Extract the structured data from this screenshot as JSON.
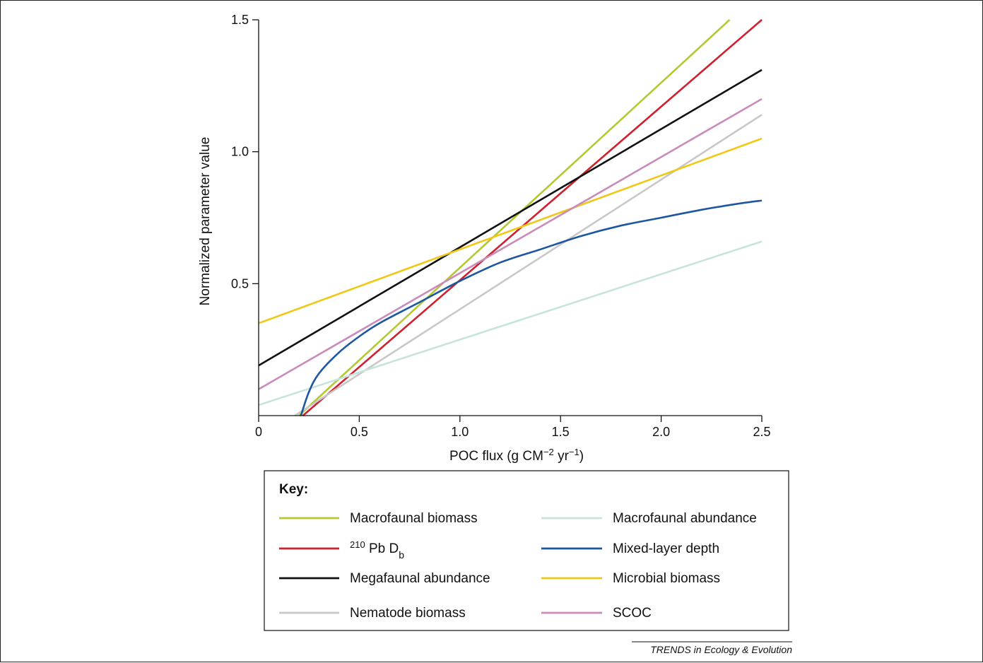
{
  "chart_data": {
    "type": "line",
    "xlabel_parts": {
      "text": "POC flux (g CM",
      "sup1": "−2",
      "mid": " yr",
      "sup2": "−1",
      "end": ")"
    },
    "ylabel": "Normalized parameter value",
    "xlim": [
      0,
      2.5
    ],
    "ylim": [
      0,
      1.5
    ],
    "xticks": [
      0,
      0.5,
      1.0,
      1.5,
      2.0,
      2.5
    ],
    "xtick_labels": [
      "0",
      "0.5",
      "1.0",
      "1.5",
      "2.0",
      "2.5"
    ],
    "yticks": [
      0.5,
      1.0,
      1.5
    ],
    "ytick_labels": [
      "0.5",
      "1.0",
      "1.5"
    ],
    "grid": false,
    "legend_title": "Key:",
    "legend_placement": "below",
    "series": [
      {
        "key": "macrofaunal_biomass",
        "name": "Macrofaunal biomass",
        "color": "#b5c832",
        "kind": "line",
        "points": [
          [
            0.2,
            0
          ],
          [
            2.34,
            1.5
          ]
        ]
      },
      {
        "key": "pb210",
        "name": "Pb D",
        "name_prefix_sup": "210",
        "name_sub": "b",
        "color": "#d0202e",
        "kind": "line",
        "points": [
          [
            0.22,
            0
          ],
          [
            2.5,
            1.5
          ]
        ]
      },
      {
        "key": "megafaunal_abundance",
        "name": "Megafaunal abundance",
        "color": "#111111",
        "kind": "line",
        "points": [
          [
            0,
            0.19
          ],
          [
            2.5,
            1.31
          ]
        ]
      },
      {
        "key": "nematode_biomass",
        "name": "Nematode biomass",
        "color": "#c8c8c8",
        "kind": "line",
        "points": [
          [
            0.18,
            0
          ],
          [
            2.5,
            1.14
          ]
        ]
      },
      {
        "key": "macrofaunal_abundance",
        "name": "Macrofaunal abundance",
        "color": "#c6e4dc",
        "kind": "line",
        "points": [
          [
            0,
            0.04
          ],
          [
            2.5,
            0.66
          ]
        ]
      },
      {
        "key": "mixed_layer_depth",
        "name": "Mixed-layer depth",
        "color": "#1d57a0",
        "kind": "curve",
        "points": [
          [
            0.21,
            0
          ],
          [
            0.25,
            0.09
          ],
          [
            0.3,
            0.16
          ],
          [
            0.4,
            0.24
          ],
          [
            0.5,
            0.3
          ],
          [
            0.6,
            0.35
          ],
          [
            0.8,
            0.43
          ],
          [
            1.0,
            0.51
          ],
          [
            1.2,
            0.58
          ],
          [
            1.4,
            0.63
          ],
          [
            1.6,
            0.68
          ],
          [
            1.8,
            0.72
          ],
          [
            2.0,
            0.75
          ],
          [
            2.2,
            0.78
          ],
          [
            2.4,
            0.805
          ],
          [
            2.5,
            0.815
          ]
        ]
      },
      {
        "key": "microbial_biomass",
        "name": "Microbial biomass",
        "color": "#f0c814",
        "kind": "line",
        "points": [
          [
            0,
            0.35
          ],
          [
            2.5,
            1.05
          ]
        ]
      },
      {
        "key": "scoc",
        "name": "SCOC",
        "color": "#c98bbb",
        "kind": "line",
        "points": [
          [
            0,
            0.1
          ],
          [
            2.5,
            1.2
          ]
        ]
      }
    ]
  },
  "credit": "TRENDS in Ecology & Evolution"
}
